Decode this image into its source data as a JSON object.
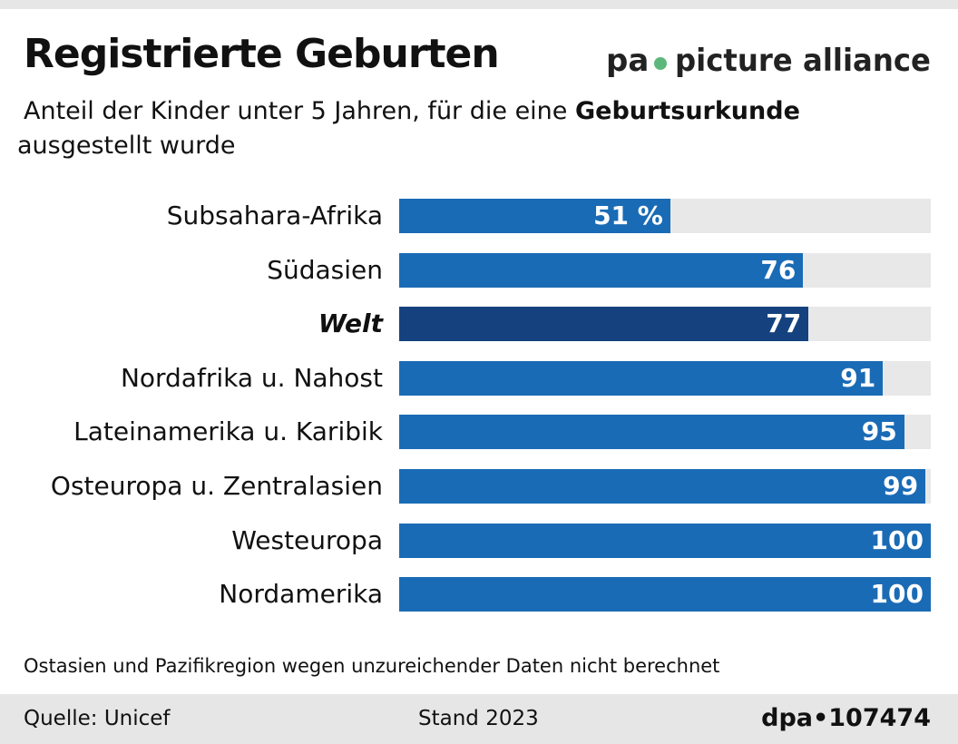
{
  "title": "Registrierte Geburten",
  "subtitle_pre": "Anteil der Kinder unter 5 Jahren, für die eine ",
  "subtitle_bold": "Geburtsurkunde",
  "subtitle_post": " ausgestellt wurde",
  "chart_data": {
    "type": "bar",
    "orientation": "horizontal",
    "unit": "%",
    "xlim": [
      0,
      100
    ],
    "categories": [
      "Subsahara-Afrika",
      "Südasien",
      "Welt",
      "Nordafrika u. Nahost",
      "Lateinamerika u. Karibik",
      "Osteuropa u. Zentralasien",
      "Westeuropa",
      "Nordamerika"
    ],
    "values": [
      51,
      76,
      77,
      91,
      95,
      99,
      100,
      100
    ],
    "value_labels": [
      "51 %",
      "76",
      "77",
      "91",
      "95",
      "99",
      "100",
      "100"
    ],
    "highlight": "Welt",
    "colors": {
      "bar": "#1a6bb5",
      "highlight": "#15427f",
      "track": "#e8e8e8"
    }
  },
  "note": "Ostasien und Pazifikregion wegen unzureichender Daten nicht berechnet",
  "footer": {
    "source": "Quelle: Unicef",
    "date": "Stand 2023",
    "id": "dpa•107474"
  },
  "watermark": "pa picture alliance"
}
